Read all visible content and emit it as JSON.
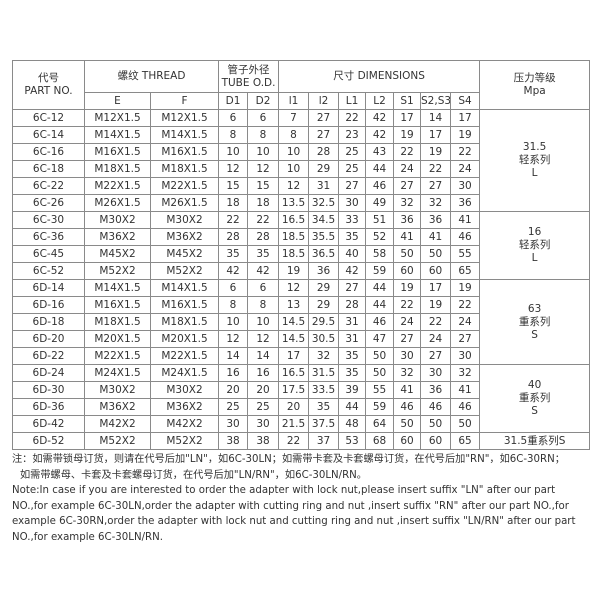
{
  "table": {
    "header": {
      "part_no": [
        "代号",
        "PART NO."
      ],
      "thread": "螺纹 THREAD",
      "tube": [
        "管子外径",
        "TUBE O.D."
      ],
      "dimensions": "尺寸 DIMENSIONS",
      "pressure": [
        "压力等级",
        "Mpa"
      ]
    },
    "subheader": [
      "E",
      "F",
      "D1",
      "D2",
      "l1",
      "l2",
      "L1",
      "L2",
      "S1",
      "S2,S3",
      "S4"
    ],
    "rows": [
      [
        "6C-12",
        "M12X1.5",
        "M12X1.5",
        "6",
        "6",
        "7",
        "27",
        "22",
        "42",
        "17",
        "14",
        "17"
      ],
      [
        "6C-14",
        "M14X1.5",
        "M14X1.5",
        "8",
        "8",
        "8",
        "27",
        "23",
        "42",
        "19",
        "17",
        "19"
      ],
      [
        "6C-16",
        "M16X1.5",
        "M16X1.5",
        "10",
        "10",
        "10",
        "28",
        "25",
        "43",
        "22",
        "19",
        "22"
      ],
      [
        "6C-18",
        "M18X1.5",
        "M18X1.5",
        "12",
        "12",
        "10",
        "29",
        "25",
        "44",
        "24",
        "22",
        "24"
      ],
      [
        "6C-22",
        "M22X1.5",
        "M22X1.5",
        "15",
        "15",
        "12",
        "31",
        "27",
        "46",
        "27",
        "27",
        "30"
      ],
      [
        "6C-26",
        "M26X1.5",
        "M26X1.5",
        "18",
        "18",
        "13.5",
        "32.5",
        "30",
        "49",
        "32",
        "32",
        "36"
      ],
      [
        "6C-30",
        "M30X2",
        "M30X2",
        "22",
        "22",
        "16.5",
        "34.5",
        "33",
        "51",
        "36",
        "36",
        "41"
      ],
      [
        "6C-36",
        "M36X2",
        "M36X2",
        "28",
        "28",
        "18.5",
        "35.5",
        "35",
        "52",
        "41",
        "41",
        "46"
      ],
      [
        "6C-45",
        "M45X2",
        "M45X2",
        "35",
        "35",
        "18.5",
        "36.5",
        "40",
        "58",
        "50",
        "50",
        "55"
      ],
      [
        "6C-52",
        "M52X2",
        "M52X2",
        "42",
        "42",
        "19",
        "36",
        "42",
        "59",
        "60",
        "60",
        "65"
      ],
      [
        "6D-14",
        "M14X1.5",
        "M14X1.5",
        "6",
        "6",
        "12",
        "29",
        "27",
        "44",
        "19",
        "17",
        "19"
      ],
      [
        "6D-16",
        "M16X1.5",
        "M16X1.5",
        "8",
        "8",
        "13",
        "29",
        "28",
        "44",
        "22",
        "19",
        "22"
      ],
      [
        "6D-18",
        "M18X1.5",
        "M18X1.5",
        "10",
        "10",
        "14.5",
        "29.5",
        "31",
        "46",
        "24",
        "22",
        "24"
      ],
      [
        "6D-20",
        "M20X1.5",
        "M20X1.5",
        "12",
        "12",
        "14.5",
        "30.5",
        "31",
        "47",
        "27",
        "24",
        "27"
      ],
      [
        "6D-22",
        "M22X1.5",
        "M22X1.5",
        "14",
        "14",
        "17",
        "32",
        "35",
        "50",
        "30",
        "27",
        "30"
      ],
      [
        "6D-24",
        "M24X1.5",
        "M24X1.5",
        "16",
        "16",
        "16.5",
        "31.5",
        "35",
        "50",
        "32",
        "30",
        "32"
      ],
      [
        "6D-30",
        "M30X2",
        "M30X2",
        "20",
        "20",
        "17.5",
        "33.5",
        "39",
        "55",
        "41",
        "36",
        "41"
      ],
      [
        "6D-36",
        "M36X2",
        "M36X2",
        "25",
        "25",
        "20",
        "35",
        "44",
        "59",
        "46",
        "46",
        "46"
      ],
      [
        "6D-42",
        "M42X2",
        "M42X2",
        "30",
        "30",
        "21.5",
        "37.5",
        "48",
        "64",
        "50",
        "50",
        "50"
      ],
      [
        "6D-52",
        "M52X2",
        "M52X2",
        "38",
        "38",
        "22",
        "37",
        "53",
        "68",
        "60",
        "60",
        "65"
      ]
    ],
    "pressure": [
      [
        "31.5",
        "轻系列",
        "L"
      ],
      null,
      null,
      null,
      null,
      null,
      [
        "16",
        "轻系列",
        "L"
      ],
      null,
      null,
      null,
      [
        "63",
        "重系列",
        "S"
      ],
      null,
      null,
      null,
      null,
      [
        "40",
        "重系列",
        "S"
      ],
      null,
      null,
      null,
      [
        "31.5重系列S"
      ]
    ]
  },
  "notes": [
    "注：如需带锁母订货，则请在代号后加\"LN\"，如6C-30LN；如需带卡套及卡套螺母订货，在代号后加\"RN\"，如6C-30RN；",
    "如需带螺母、卡套及卡套螺母订货，在代号后加\"LN/RN\"，如6C-30LN/RN。",
    "Note:In case if you are interested to order the adapter with lock nut,please insert suffix \"LN\" after our part NO.,for example 6C-30LN,order the adapter with cutting ring and nut ,insert suffix \"RN\" after our part NO.,for example 6C-30RN,order the adapter with lock nut and cutting ring and nut ,insert suffix \"LN/RN\" after our part NO.,for example 6C-30LN/RN."
  ]
}
